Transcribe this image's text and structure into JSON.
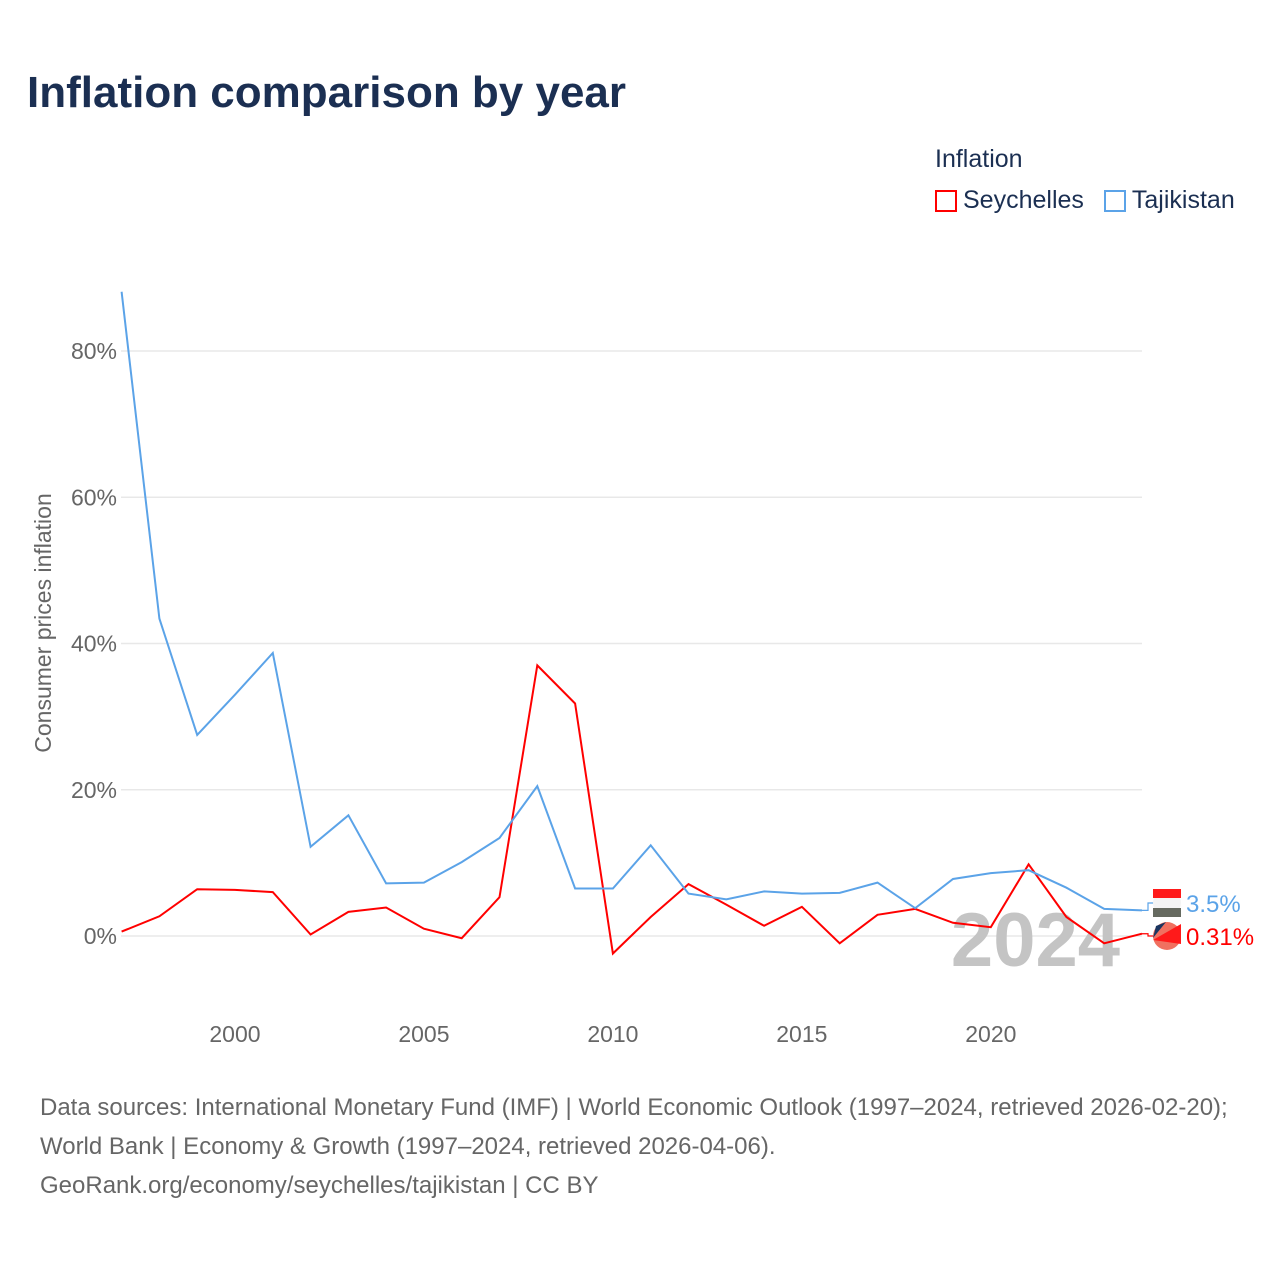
{
  "title": "Inflation comparison by year",
  "legend": {
    "title": "Inflation",
    "items": [
      {
        "name": "Seychelles",
        "color": "#ff0000"
      },
      {
        "name": "Tajikistan",
        "color": "#5ba3e8"
      }
    ]
  },
  "chart_data": {
    "type": "line",
    "title": "Inflation comparison by year",
    "xlabel": "",
    "ylabel": "Consumer prices inflation",
    "x": [
      1997,
      1998,
      1999,
      2000,
      2001,
      2002,
      2003,
      2004,
      2005,
      2006,
      2007,
      2008,
      2009,
      2010,
      2011,
      2012,
      2013,
      2014,
      2015,
      2016,
      2017,
      2018,
      2019,
      2020,
      2021,
      2022,
      2023,
      2024
    ],
    "xlim": [
      1997,
      2024
    ],
    "ylim": [
      -10,
      90
    ],
    "x_ticks": [
      "2000",
      "2005",
      "2010",
      "2015",
      "2020"
    ],
    "y_ticks": [
      {
        "v": 0,
        "label": "0%"
      },
      {
        "v": 20,
        "label": "20%"
      },
      {
        "v": 40,
        "label": "40%"
      },
      {
        "v": 60,
        "label": "60%"
      },
      {
        "v": 80,
        "label": "80%"
      }
    ],
    "grid": true,
    "legend_position": "top-right",
    "year_watermark": "2024",
    "series": [
      {
        "name": "Seychelles",
        "color": "#ff0000",
        "end_label": "0.31%",
        "values": [
          0.6,
          2.7,
          6.4,
          6.3,
          6.0,
          0.2,
          3.3,
          3.9,
          1.0,
          -0.3,
          5.3,
          37.0,
          31.8,
          -2.4,
          2.6,
          7.1,
          4.3,
          1.4,
          4.0,
          -1.0,
          2.9,
          3.7,
          1.8,
          1.2,
          9.8,
          2.6,
          -1.0,
          0.31
        ]
      },
      {
        "name": "Tajikistan",
        "color": "#5ba3e8",
        "end_label": "3.5%",
        "values": [
          88.1,
          43.4,
          27.5,
          33.0,
          38.7,
          12.2,
          16.5,
          7.2,
          7.3,
          10.1,
          13.4,
          20.5,
          6.5,
          6.5,
          12.4,
          5.8,
          5.0,
          6.1,
          5.8,
          5.9,
          7.3,
          3.8,
          7.8,
          8.6,
          9.0,
          6.6,
          3.7,
          3.5
        ]
      }
    ]
  },
  "footer": {
    "line1": "Data sources: International Monetary Fund (IMF) | World Economic Outlook (1997–2024, retrieved 2026-02-20); World Bank | Economy & Growth (1997–2024, retrieved 2026-04-06).",
    "line2": "GeoRank.org/economy/seychelles/tajikistan | CC BY"
  }
}
